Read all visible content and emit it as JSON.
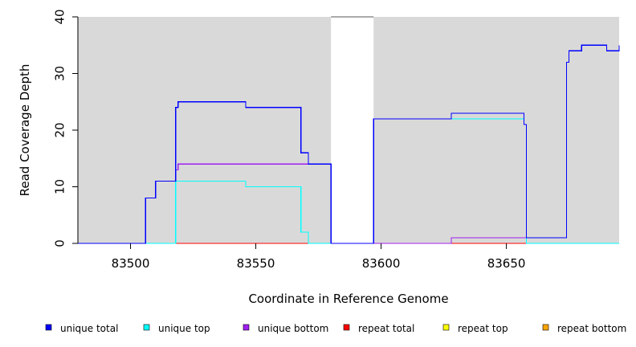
{
  "chart_data": {
    "type": "line",
    "style": "step",
    "xlabel": "Coordinate in Reference Genome",
    "ylabel": "Read Coverage Depth",
    "xlim": [
      83479,
      83695
    ],
    "ylim": [
      0,
      40
    ],
    "x_ticks": [
      83500,
      83550,
      83600,
      83650
    ],
    "y_ticks": [
      0,
      10,
      20,
      30,
      40
    ],
    "x_tick_labels": [
      "83500",
      "83550",
      "83600",
      "83650"
    ],
    "y_tick_labels": [
      "0",
      "10",
      "20",
      "30",
      "40"
    ],
    "background_color": "#d9d9d9",
    "uncovered_region": [
      83580,
      83597
    ],
    "legend_position": "bottom",
    "series": [
      {
        "name": "unique total",
        "color": "#0000ff",
        "steps": [
          [
            83479,
            0
          ],
          [
            83506,
            8
          ],
          [
            83510,
            11
          ],
          [
            83518,
            24
          ],
          [
            83519,
            25
          ],
          [
            83546,
            24
          ],
          [
            83568,
            16
          ],
          [
            83571,
            14
          ],
          [
            83580,
            0
          ],
          [
            83597,
            22
          ],
          [
            83628,
            23
          ],
          [
            83657,
            21
          ],
          [
            83658,
            1
          ],
          [
            83674,
            32
          ],
          [
            83675,
            34
          ],
          [
            83680,
            35
          ],
          [
            83690,
            34
          ],
          [
            83695,
            35
          ]
        ]
      },
      {
        "name": "unique top",
        "color": "#00ffff",
        "steps": [
          [
            83479,
            0
          ],
          [
            83518,
            11
          ],
          [
            83546,
            10
          ],
          [
            83568,
            2
          ],
          [
            83571,
            0
          ],
          [
            83580,
            0
          ],
          [
            83597,
            22
          ],
          [
            83657,
            21
          ],
          [
            83658,
            0
          ],
          [
            83695,
            0
          ]
        ]
      },
      {
        "name": "unique bottom",
        "color": "#a020f0",
        "steps": [
          [
            83479,
            0
          ],
          [
            83518,
            13
          ],
          [
            83519,
            14
          ],
          [
            83571,
            14
          ],
          [
            83580,
            0
          ],
          [
            83628,
            1
          ],
          [
            83658,
            0
          ],
          [
            83695,
            0
          ]
        ]
      },
      {
        "name": "repeat total",
        "color": "#ff0000",
        "steps": [
          [
            83479,
            0
          ],
          [
            83695,
            0
          ]
        ]
      },
      {
        "name": "repeat top",
        "color": "#ffff00",
        "steps": [
          [
            83479,
            0
          ],
          [
            83695,
            0
          ]
        ]
      },
      {
        "name": "repeat bottom",
        "color": "#ffa500",
        "steps": [
          [
            83479,
            0
          ],
          [
            83695,
            0
          ]
        ]
      }
    ]
  }
}
